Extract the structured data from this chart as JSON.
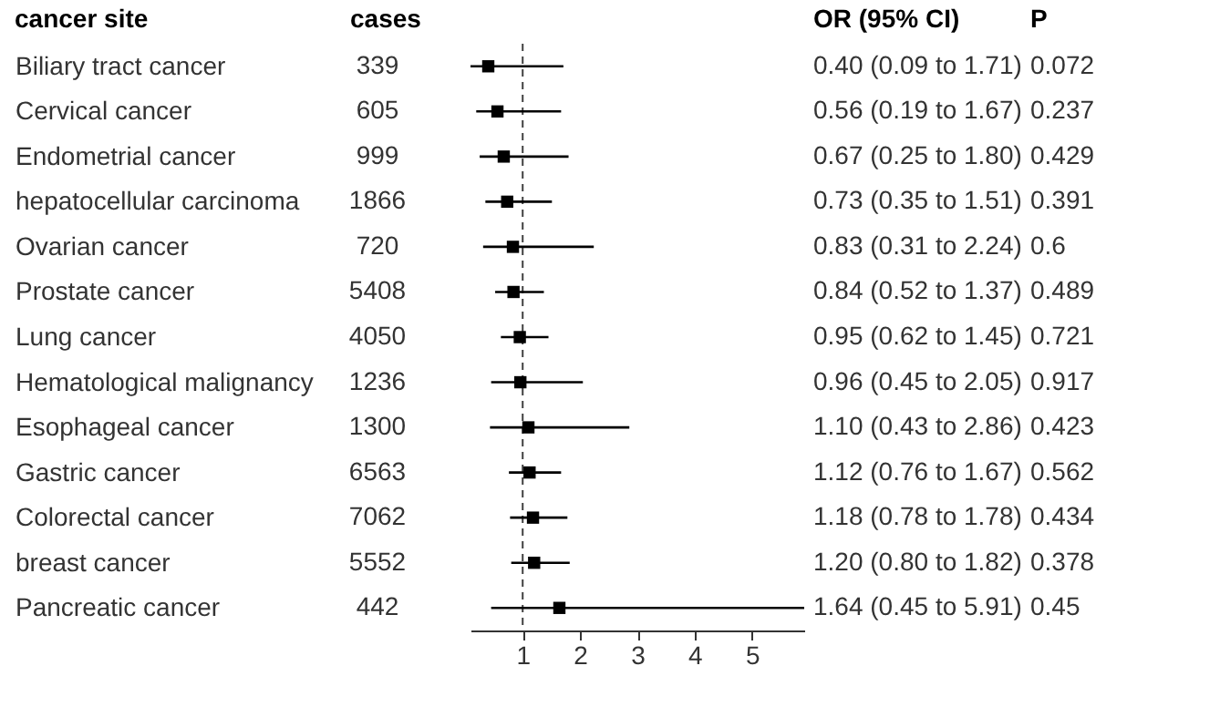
{
  "chart_data": {
    "type": "scatter",
    "orientation": "horizontal",
    "ylabel": "cancer site",
    "categories": [
      "Biliary tract cancer",
      "Cervical cancer",
      "Endometrial cancer",
      "hepatocellular carcinoma",
      "Ovarian cancer",
      "Prostate cancer",
      "Lung cancer",
      "Hematological malignancy",
      "Esophageal cancer",
      "Gastric cancer",
      "Colorectal cancer",
      "breast cancer",
      "Pancreatic cancer"
    ],
    "values": [
      0.4,
      0.56,
      0.67,
      0.73,
      0.83,
      0.84,
      0.95,
      0.96,
      1.1,
      1.12,
      1.18,
      1.2,
      1.64
    ],
    "errors": [
      [
        0.09,
        1.71
      ],
      [
        0.19,
        1.67
      ],
      [
        0.25,
        1.8
      ],
      [
        0.35,
        1.51
      ],
      [
        0.31,
        2.24
      ],
      [
        0.52,
        1.37
      ],
      [
        0.62,
        1.45
      ],
      [
        0.45,
        2.05
      ],
      [
        0.43,
        2.86
      ],
      [
        0.76,
        1.67
      ],
      [
        0.78,
        1.78
      ],
      [
        0.8,
        1.82
      ],
      [
        0.45,
        5.91
      ]
    ],
    "value_labels": [
      "0.40 (0.09 to 1.71)",
      "0.56 (0.19 to 1.67)",
      "0.67 (0.25 to 1.80)",
      "0.73 (0.35 to 1.51)",
      "0.83 (0.31 to 2.24)",
      "0.84 (0.52 to 1.37)",
      "0.95 (0.62 to 1.45)",
      "0.96 (0.45 to 2.05)",
      "1.10 (0.43 to 2.86)",
      "1.12 (0.76 to 1.67)",
      "1.18 (0.78 to 1.78)",
      "1.20 (0.80 to 1.82)",
      "1.64 (0.45 to 5.91)"
    ],
    "color": "#000000",
    "marker": "square",
    "xlim": [
      0.09,
      5.91
    ],
    "xticks": [
      1,
      2,
      3,
      4,
      5
    ],
    "ref_lines": [
      {
        "axis": "x",
        "value": 1,
        "line_style": "dashed",
        "color": "#404040"
      }
    ],
    "annotations": [
      "cases",
      "339",
      "605",
      "999",
      "1866",
      "720",
      "5408",
      "4050",
      "1236",
      "1300",
      "6563",
      "7062",
      "5552",
      "442",
      "OR (95% CI)",
      "P",
      "0.072",
      "0.237",
      "0.429",
      "0.391",
      "0.6",
      "0.489",
      "0.721",
      "0.917",
      "0.423",
      "0.562",
      "0.434",
      "0.378",
      "0.45"
    ]
  }
}
